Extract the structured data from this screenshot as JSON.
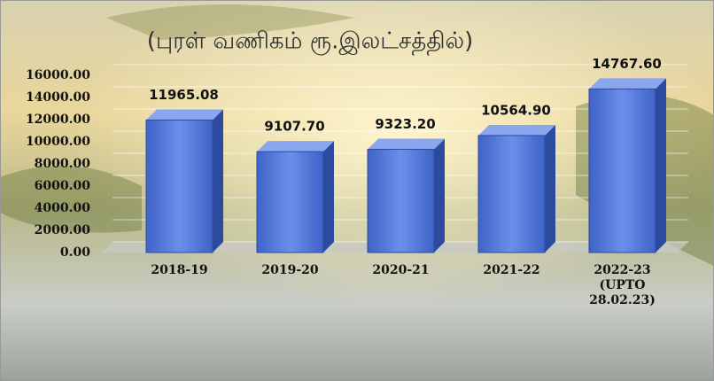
{
  "chart_data": {
    "type": "bar",
    "title": "(புரள் வணிகம் ரூ.இலட்சத்தில்)",
    "categories": [
      "2018-19",
      "2019-20",
      "2020-21",
      "2021-22",
      "2022-23 (UPTO 28.02.23)"
    ],
    "values": [
      11965.08,
      9107.7,
      9323.2,
      10564.9,
      14767.6
    ],
    "value_labels": [
      "11965.08",
      "9107.70",
      "9323.20",
      "10564.90",
      "14767.60"
    ],
    "color": "#4f74d6",
    "ylim": [
      0,
      16000
    ],
    "yticks": [
      {
        "value": 0,
        "label": "0.00"
      },
      {
        "value": 2000,
        "label": "2000.00"
      },
      {
        "value": 4000,
        "label": "4000.00"
      },
      {
        "value": 6000,
        "label": "6000.00"
      },
      {
        "value": 8000,
        "label": "8000.00"
      },
      {
        "value": 10000,
        "label": "10000.00"
      },
      {
        "value": 12000,
        "label": "12000.00"
      },
      {
        "value": 14000,
        "label": "14000.00"
      },
      {
        "value": 16000,
        "label": "16000.00"
      }
    ],
    "grid": true
  }
}
